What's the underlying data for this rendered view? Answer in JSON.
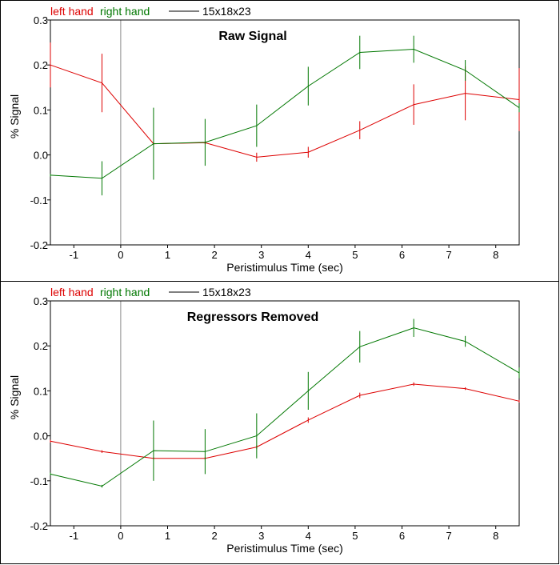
{
  "colors": {
    "left_hand": "#dd0000",
    "right_hand": "#007700",
    "zero_line": "#888888",
    "axes": "#000000"
  },
  "chart_data": [
    {
      "type": "line",
      "title": "Raw Signal",
      "xlabel": "Peristimulus Time (sec)",
      "ylabel": "% Signal",
      "xlim": [
        -1.5,
        8.5
      ],
      "ylim": [
        -0.2,
        0.3
      ],
      "xticks": [
        "-1",
        "0",
        "1",
        "2",
        "3",
        "4",
        "5",
        "6",
        "7",
        "8"
      ],
      "yticks": [
        "-0.2",
        "-0.1",
        "0.0",
        "0.1",
        "0.2",
        "0.3"
      ],
      "legend": {
        "entries": [
          "left hand",
          "right hand"
        ],
        "roi_label": "15x18x23",
        "position": "top-left"
      },
      "series": [
        {
          "name": "left hand",
          "color": "#dd0000",
          "x": [
            -1.5,
            -0.4,
            0.7,
            1.8,
            2.9,
            4.0,
            5.1,
            6.25,
            7.35,
            8.5
          ],
          "y": [
            0.2,
            0.16,
            0.025,
            0.027,
            -0.005,
            0.006,
            0.055,
            0.112,
            0.137,
            0.123
          ],
          "err": [
            0.05,
            0.065,
            0.0,
            0.002,
            0.01,
            0.012,
            0.02,
            0.045,
            0.06,
            0.07
          ]
        },
        {
          "name": "right hand",
          "color": "#007700",
          "x": [
            -1.5,
            -0.4,
            0.7,
            1.8,
            2.9,
            4.0,
            5.1,
            6.25,
            7.35,
            8.5
          ],
          "y": [
            -0.045,
            -0.052,
            0.025,
            0.028,
            0.065,
            0.153,
            0.228,
            0.235,
            0.188,
            0.105
          ],
          "err": [
            0.0,
            0.038,
            0.08,
            0.052,
            0.047,
            0.043,
            0.037,
            0.03,
            0.023,
            0.01
          ]
        }
      ]
    },
    {
      "type": "line",
      "title": "Regressors Removed",
      "xlabel": "Peristimulus Time (sec)",
      "ylabel": "% Signal",
      "xlim": [
        -1.5,
        8.5
      ],
      "ylim": [
        -0.2,
        0.3
      ],
      "xticks": [
        "-1",
        "0",
        "1",
        "2",
        "3",
        "4",
        "5",
        "6",
        "7",
        "8"
      ],
      "yticks": [
        "-0.2",
        "-0.1",
        "0.0",
        "0.1",
        "0.2",
        "0.3"
      ],
      "legend": {
        "entries": [
          "left hand",
          "right hand"
        ],
        "roi_label": "15x18x23",
        "position": "top-left"
      },
      "series": [
        {
          "name": "left hand",
          "color": "#dd0000",
          "x": [
            -1.5,
            -0.4,
            0.7,
            1.8,
            2.9,
            4.0,
            5.1,
            6.25,
            7.35,
            8.5
          ],
          "y": [
            -0.012,
            -0.035,
            -0.05,
            -0.05,
            -0.025,
            0.035,
            0.09,
            0.115,
            0.105,
            0.077
          ],
          "err": [
            0.0,
            0.002,
            0.002,
            0.002,
            0.004,
            0.006,
            0.006,
            0.004,
            0.003,
            0.002
          ]
        },
        {
          "name": "right hand",
          "color": "#007700",
          "x": [
            -1.5,
            -0.4,
            0.7,
            1.8,
            2.9,
            4.0,
            5.1,
            6.25,
            7.35,
            8.5
          ],
          "y": [
            -0.085,
            -0.112,
            -0.033,
            -0.035,
            0.0,
            0.1,
            0.198,
            0.24,
            0.21,
            0.14
          ],
          "err": [
            0.0,
            0.003,
            0.067,
            0.05,
            0.05,
            0.042,
            0.035,
            0.02,
            0.012,
            0.012
          ]
        }
      ]
    }
  ]
}
